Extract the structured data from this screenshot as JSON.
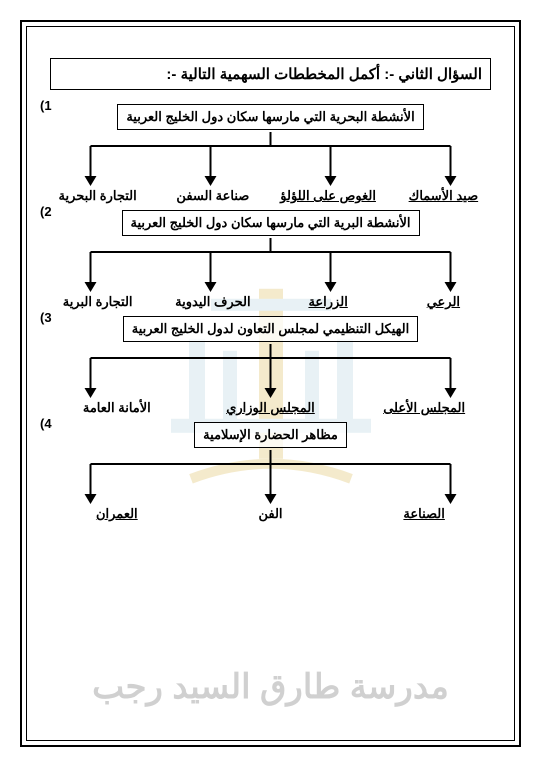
{
  "question_title": "السؤال الثاني -: أكمل المخططات السهمية التالية -:",
  "watermark_text": "مدرسة طارق السيد رجب",
  "watermark_colors": {
    "gold": "#d4af37",
    "blue": "#a8c8d8",
    "gray": "#aaaaaa"
  },
  "diagrams": [
    {
      "num": "1)",
      "title": "الأنشطة البحرية التي مارسها سكان دول الخليج العربية",
      "leaves": [
        {
          "text": "صيد الأسماك",
          "underline": true
        },
        {
          "text": "الغوص على اللؤلؤ",
          "underline": true
        },
        {
          "text": "صناعة السفن",
          "underline": false
        },
        {
          "text": "التجارة البحرية",
          "underline": false
        }
      ]
    },
    {
      "num": "2)",
      "title": "الأنشطة البرية التي مارسها سكان دول الخليج العربية",
      "leaves": [
        {
          "text": "الرعي",
          "underline": true
        },
        {
          "text": "الزراعة",
          "underline": true
        },
        {
          "text": "الحرف اليدوية",
          "underline": false
        },
        {
          "text": "التجارة البرية",
          "underline": false
        }
      ]
    },
    {
      "num": "3)",
      "title": "الهيكل التنظيمي لمجلس التعاون لدول الخليج العربية",
      "leaves": [
        {
          "text": "المجلس الأعلى",
          "underline": true
        },
        {
          "text": "المجلس الوزاري",
          "underline": true
        },
        {
          "text": "الأمانة العامة",
          "underline": false
        }
      ]
    },
    {
      "num": "4)",
      "title": "مظاهر الحضارة الإسلامية",
      "leaves": [
        {
          "text": "الصناعة",
          "underline": true
        },
        {
          "text": "الفن",
          "underline": false
        },
        {
          "text": "العمران",
          "underline": true
        }
      ]
    }
  ]
}
